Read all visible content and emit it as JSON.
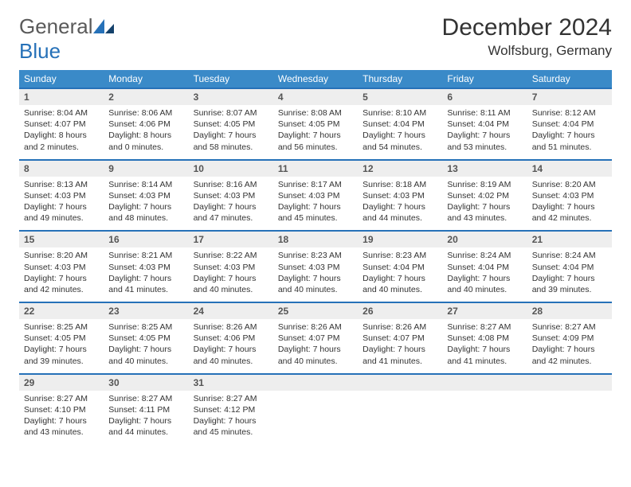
{
  "brand": {
    "word1": "General",
    "word2": "Blue"
  },
  "title": "December 2024",
  "location": "Wolfsburg, Germany",
  "colors": {
    "header_bar": "#3a8ac8",
    "row_divider": "#2671b8",
    "daynum_bg": "#eeeeee",
    "text": "#333333",
    "brand_grey": "#5a5a5a",
    "brand_blue": "#2671b8"
  },
  "dow": [
    "Sunday",
    "Monday",
    "Tuesday",
    "Wednesday",
    "Thursday",
    "Friday",
    "Saturday"
  ],
  "weeks": [
    [
      {
        "n": "1",
        "sr": "Sunrise: 8:04 AM",
        "ss": "Sunset: 4:07 PM",
        "dl": "Daylight: 8 hours and 2 minutes."
      },
      {
        "n": "2",
        "sr": "Sunrise: 8:06 AM",
        "ss": "Sunset: 4:06 PM",
        "dl": "Daylight: 8 hours and 0 minutes."
      },
      {
        "n": "3",
        "sr": "Sunrise: 8:07 AM",
        "ss": "Sunset: 4:05 PM",
        "dl": "Daylight: 7 hours and 58 minutes."
      },
      {
        "n": "4",
        "sr": "Sunrise: 8:08 AM",
        "ss": "Sunset: 4:05 PM",
        "dl": "Daylight: 7 hours and 56 minutes."
      },
      {
        "n": "5",
        "sr": "Sunrise: 8:10 AM",
        "ss": "Sunset: 4:04 PM",
        "dl": "Daylight: 7 hours and 54 minutes."
      },
      {
        "n": "6",
        "sr": "Sunrise: 8:11 AM",
        "ss": "Sunset: 4:04 PM",
        "dl": "Daylight: 7 hours and 53 minutes."
      },
      {
        "n": "7",
        "sr": "Sunrise: 8:12 AM",
        "ss": "Sunset: 4:04 PM",
        "dl": "Daylight: 7 hours and 51 minutes."
      }
    ],
    [
      {
        "n": "8",
        "sr": "Sunrise: 8:13 AM",
        "ss": "Sunset: 4:03 PM",
        "dl": "Daylight: 7 hours and 49 minutes."
      },
      {
        "n": "9",
        "sr": "Sunrise: 8:14 AM",
        "ss": "Sunset: 4:03 PM",
        "dl": "Daylight: 7 hours and 48 minutes."
      },
      {
        "n": "10",
        "sr": "Sunrise: 8:16 AM",
        "ss": "Sunset: 4:03 PM",
        "dl": "Daylight: 7 hours and 47 minutes."
      },
      {
        "n": "11",
        "sr": "Sunrise: 8:17 AM",
        "ss": "Sunset: 4:03 PM",
        "dl": "Daylight: 7 hours and 45 minutes."
      },
      {
        "n": "12",
        "sr": "Sunrise: 8:18 AM",
        "ss": "Sunset: 4:03 PM",
        "dl": "Daylight: 7 hours and 44 minutes."
      },
      {
        "n": "13",
        "sr": "Sunrise: 8:19 AM",
        "ss": "Sunset: 4:02 PM",
        "dl": "Daylight: 7 hours and 43 minutes."
      },
      {
        "n": "14",
        "sr": "Sunrise: 8:20 AM",
        "ss": "Sunset: 4:03 PM",
        "dl": "Daylight: 7 hours and 42 minutes."
      }
    ],
    [
      {
        "n": "15",
        "sr": "Sunrise: 8:20 AM",
        "ss": "Sunset: 4:03 PM",
        "dl": "Daylight: 7 hours and 42 minutes."
      },
      {
        "n": "16",
        "sr": "Sunrise: 8:21 AM",
        "ss": "Sunset: 4:03 PM",
        "dl": "Daylight: 7 hours and 41 minutes."
      },
      {
        "n": "17",
        "sr": "Sunrise: 8:22 AM",
        "ss": "Sunset: 4:03 PM",
        "dl": "Daylight: 7 hours and 40 minutes."
      },
      {
        "n": "18",
        "sr": "Sunrise: 8:23 AM",
        "ss": "Sunset: 4:03 PM",
        "dl": "Daylight: 7 hours and 40 minutes."
      },
      {
        "n": "19",
        "sr": "Sunrise: 8:23 AM",
        "ss": "Sunset: 4:04 PM",
        "dl": "Daylight: 7 hours and 40 minutes."
      },
      {
        "n": "20",
        "sr": "Sunrise: 8:24 AM",
        "ss": "Sunset: 4:04 PM",
        "dl": "Daylight: 7 hours and 40 minutes."
      },
      {
        "n": "21",
        "sr": "Sunrise: 8:24 AM",
        "ss": "Sunset: 4:04 PM",
        "dl": "Daylight: 7 hours and 39 minutes."
      }
    ],
    [
      {
        "n": "22",
        "sr": "Sunrise: 8:25 AM",
        "ss": "Sunset: 4:05 PM",
        "dl": "Daylight: 7 hours and 39 minutes."
      },
      {
        "n": "23",
        "sr": "Sunrise: 8:25 AM",
        "ss": "Sunset: 4:05 PM",
        "dl": "Daylight: 7 hours and 40 minutes."
      },
      {
        "n": "24",
        "sr": "Sunrise: 8:26 AM",
        "ss": "Sunset: 4:06 PM",
        "dl": "Daylight: 7 hours and 40 minutes."
      },
      {
        "n": "25",
        "sr": "Sunrise: 8:26 AM",
        "ss": "Sunset: 4:07 PM",
        "dl": "Daylight: 7 hours and 40 minutes."
      },
      {
        "n": "26",
        "sr": "Sunrise: 8:26 AM",
        "ss": "Sunset: 4:07 PM",
        "dl": "Daylight: 7 hours and 41 minutes."
      },
      {
        "n": "27",
        "sr": "Sunrise: 8:27 AM",
        "ss": "Sunset: 4:08 PM",
        "dl": "Daylight: 7 hours and 41 minutes."
      },
      {
        "n": "28",
        "sr": "Sunrise: 8:27 AM",
        "ss": "Sunset: 4:09 PM",
        "dl": "Daylight: 7 hours and 42 minutes."
      }
    ],
    [
      {
        "n": "29",
        "sr": "Sunrise: 8:27 AM",
        "ss": "Sunset: 4:10 PM",
        "dl": "Daylight: 7 hours and 43 minutes."
      },
      {
        "n": "30",
        "sr": "Sunrise: 8:27 AM",
        "ss": "Sunset: 4:11 PM",
        "dl": "Daylight: 7 hours and 44 minutes."
      },
      {
        "n": "31",
        "sr": "Sunrise: 8:27 AM",
        "ss": "Sunset: 4:12 PM",
        "dl": "Daylight: 7 hours and 45 minutes."
      },
      null,
      null,
      null,
      null
    ]
  ]
}
